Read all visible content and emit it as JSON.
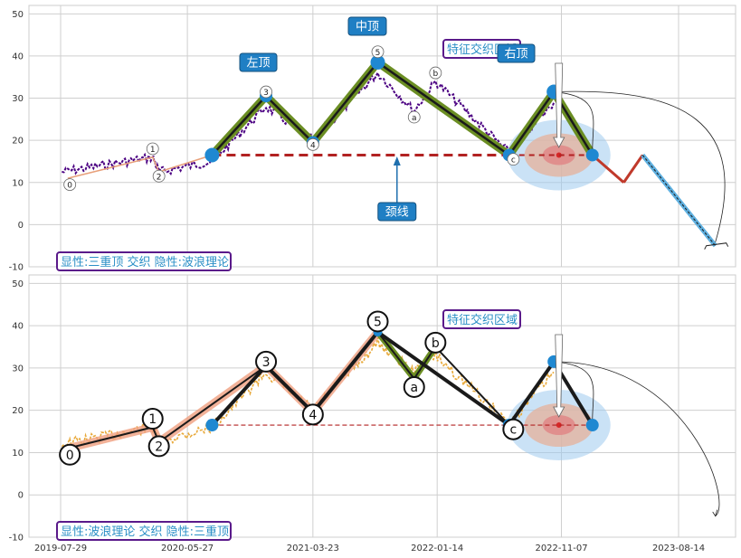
{
  "chart_data": [
    {
      "type": "line",
      "panel": "top",
      "ylim": [
        -10,
        52
      ],
      "yticks": [
        -10,
        0,
        10,
        20,
        30,
        40,
        50
      ],
      "legend_text": "显性:三重顶 交织 隐性:波浪理论",
      "annotations": {
        "left_top": "左顶",
        "middle_top": "中顶",
        "right_top": "右顶",
        "neckline": "颈线",
        "feature_zone": "特征交织区域"
      },
      "wave_labels": [
        {
          "label": "0",
          "date": "2019-08-20",
          "value": 9.5
        },
        {
          "label": "1",
          "date": "2020-03-05",
          "value": 18
        },
        {
          "label": "2",
          "date": "2020-03-20",
          "value": 11.5
        },
        {
          "label": "3",
          "date": "2020-12-01",
          "value": 31.5
        },
        {
          "label": "4",
          "date": "2021-03-23",
          "value": 19
        },
        {
          "label": "5",
          "date": "2021-08-25",
          "value": 41
        },
        {
          "label": "a",
          "date": "2021-11-20",
          "value": 25.5
        },
        {
          "label": "b",
          "date": "2022-01-10",
          "value": 36
        },
        {
          "label": "c",
          "date": "2022-07-15",
          "value": 15.5
        }
      ],
      "triple_top_path": [
        {
          "date": "2020-07-25",
          "value": 16.5
        },
        {
          "date": "2020-12-01",
          "value": 30.5
        },
        {
          "date": "2021-03-23",
          "value": 19.5
        },
        {
          "date": "2021-08-25",
          "value": 38.5
        },
        {
          "date": "2022-07-05",
          "value": 16.5
        },
        {
          "date": "2022-10-20",
          "value": 31.5
        },
        {
          "date": "2023-01-20",
          "value": 16.5
        }
      ],
      "projection_path": [
        {
          "date": "2023-01-20",
          "value": 16.5
        },
        {
          "date": "2023-04-05",
          "value": 10
        },
        {
          "date": "2023-05-20",
          "value": 16.5
        },
        {
          "date": "2023-11-10",
          "value": -5
        }
      ],
      "neckline_value": 16.5,
      "top_points": [
        {
          "date": "2020-07-25",
          "value": 16.5
        },
        {
          "date": "2020-12-01",
          "value": 30.5
        },
        {
          "date": "2021-03-23",
          "value": 19.5
        },
        {
          "date": "2021-08-25",
          "value": 38.5
        },
        {
          "date": "2022-07-05",
          "value": 16.5
        },
        {
          "date": "2022-10-20",
          "value": 31.5
        },
        {
          "date": "2023-01-20",
          "value": 16.5
        }
      ],
      "feature_center": {
        "date": "2022-11-01",
        "value": 16.5
      }
    },
    {
      "type": "line",
      "panel": "bottom",
      "ylim": [
        -10,
        52
      ],
      "yticks": [
        -10,
        0,
        10,
        20,
        30,
        40,
        50
      ],
      "xticks": [
        "2019-07-29",
        "2020-05-27",
        "2021-03-23",
        "2022-01-14",
        "2022-11-07",
        "2023-08-14"
      ],
      "legend_text": "显性:波浪理论 交织 隐性:三重顶",
      "annotations": {
        "feature_zone": "特征交织区域"
      },
      "wave_labels": [
        {
          "label": "0",
          "date": "2019-08-20",
          "value": 9.5
        },
        {
          "label": "1",
          "date": "2020-03-05",
          "value": 18
        },
        {
          "label": "2",
          "date": "2020-03-20",
          "value": 11.5
        },
        {
          "label": "3",
          "date": "2020-12-01",
          "value": 31.5
        },
        {
          "label": "4",
          "date": "2021-03-23",
          "value": 19
        },
        {
          "label": "5",
          "date": "2021-08-25",
          "value": 41
        },
        {
          "label": "a",
          "date": "2021-11-20",
          "value": 25.5
        },
        {
          "label": "b",
          "date": "2022-01-10",
          "value": 36
        },
        {
          "label": "c",
          "date": "2022-07-15",
          "value": 15.5
        }
      ],
      "wave_path": [
        {
          "date": "2019-08-15",
          "value": 11
        },
        {
          "date": "2020-03-05",
          "value": 16
        },
        {
          "date": "2020-03-20",
          "value": 12.5
        },
        {
          "date": "2020-12-01",
          "value": 30.5
        },
        {
          "date": "2021-03-23",
          "value": 19.5
        },
        {
          "date": "2021-08-25",
          "value": 38.5
        },
        {
          "date": "2021-11-20",
          "value": 27.5
        },
        {
          "date": "2022-01-10",
          "value": 35
        },
        {
          "date": "2022-07-05",
          "value": 16.5
        }
      ],
      "triple_top_path": [
        {
          "date": "2020-07-25",
          "value": 16.5
        },
        {
          "date": "2020-12-01",
          "value": 30.5
        },
        {
          "date": "2021-03-23",
          "value": 19.5
        },
        {
          "date": "2021-08-25",
          "value": 38.5
        },
        {
          "date": "2022-07-05",
          "value": 16.5
        },
        {
          "date": "2022-10-20",
          "value": 31.5
        },
        {
          "date": "2023-01-20",
          "value": 16.5
        }
      ],
      "neckline_value": 16.5,
      "feature_center": {
        "date": "2022-11-01",
        "value": 16.5
      }
    }
  ],
  "colors": {
    "price_top": "#4b0082",
    "price_bottom": "#e8a93a",
    "wave_band": "#f0a080",
    "pattern_green": "#6b8e23",
    "pattern_black": "#1a1a1a",
    "neckline": "#b22222",
    "node": "#1f88d1",
    "projection_red": "#c0392b",
    "projection_blue": "#5fb0e0"
  }
}
